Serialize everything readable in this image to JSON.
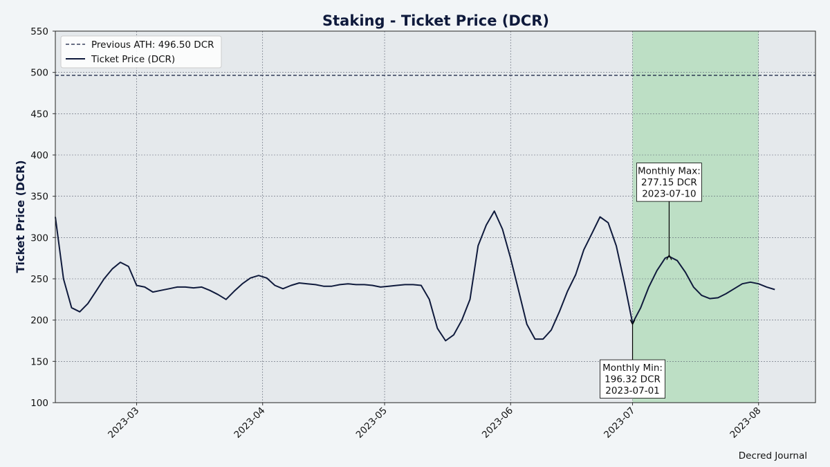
{
  "chart_data": {
    "type": "line",
    "title": "Staking - Ticket Price (DCR)",
    "y_label": "Ticket Price (DCR)",
    "source": "Decred Journal",
    "x": [
      "2023-02-09",
      "2023-02-11",
      "2023-02-13",
      "2023-02-15",
      "2023-02-17",
      "2023-02-19",
      "2023-02-21",
      "2023-02-23",
      "2023-02-25",
      "2023-02-27",
      "2023-03-01",
      "2023-03-03",
      "2023-03-05",
      "2023-03-07",
      "2023-03-09",
      "2023-03-11",
      "2023-03-13",
      "2023-03-15",
      "2023-03-17",
      "2023-03-19",
      "2023-03-21",
      "2023-03-23",
      "2023-03-25",
      "2023-03-27",
      "2023-03-29",
      "2023-03-31",
      "2023-04-02",
      "2023-04-04",
      "2023-04-06",
      "2023-04-08",
      "2023-04-10",
      "2023-04-12",
      "2023-04-14",
      "2023-04-16",
      "2023-04-18",
      "2023-04-20",
      "2023-04-22",
      "2023-04-24",
      "2023-04-26",
      "2023-04-28",
      "2023-04-30",
      "2023-05-02",
      "2023-05-04",
      "2023-05-06",
      "2023-05-08",
      "2023-05-10",
      "2023-05-12",
      "2023-05-14",
      "2023-05-16",
      "2023-05-18",
      "2023-05-20",
      "2023-05-22",
      "2023-05-24",
      "2023-05-26",
      "2023-05-28",
      "2023-05-30",
      "2023-06-01",
      "2023-06-03",
      "2023-06-05",
      "2023-06-07",
      "2023-06-09",
      "2023-06-11",
      "2023-06-13",
      "2023-06-15",
      "2023-06-17",
      "2023-06-19",
      "2023-06-21",
      "2023-06-23",
      "2023-06-25",
      "2023-06-27",
      "2023-06-29",
      "2023-07-01",
      "2023-07-03",
      "2023-07-05",
      "2023-07-07",
      "2023-07-09",
      "2023-07-10",
      "2023-07-12",
      "2023-07-14",
      "2023-07-16",
      "2023-07-18",
      "2023-07-20",
      "2023-07-22",
      "2023-07-24",
      "2023-07-26",
      "2023-07-28",
      "2023-07-30",
      "2023-08-01",
      "2023-08-03",
      "2023-08-05"
    ],
    "series": [
      {
        "name": "Ticket Price (DCR)",
        "color": "#0f1a3c",
        "values": [
          325,
          250,
          215,
          210,
          220,
          235,
          250,
          262,
          270,
          265,
          242,
          240,
          234,
          236,
          238,
          240,
          240,
          239,
          240,
          236,
          231,
          225,
          235,
          244,
          251,
          254,
          251,
          242,
          238,
          242,
          245,
          244,
          243,
          241,
          241,
          243,
          244,
          243,
          243,
          242,
          240,
          241,
          242,
          243,
          243,
          242,
          225,
          190,
          175,
          182,
          200,
          225,
          290,
          315,
          332,
          310,
          275,
          235,
          195,
          177,
          177,
          188,
          210,
          235,
          255,
          285,
          305,
          325,
          318,
          290,
          245,
          196.32,
          215,
          240,
          260,
          275,
          277.15,
          272,
          258,
          240,
          230,
          226,
          227,
          232,
          238,
          244,
          246,
          244,
          240,
          237
        ]
      }
    ],
    "reference_lines": [
      {
        "name": "Previous ATH: 496.50 DCR",
        "value": 496.5,
        "color": "#0f1a3c"
      }
    ],
    "highlight": {
      "from": "2023-07-01",
      "to": "2023-08-01",
      "color": "#bddfc5"
    },
    "annotations": [
      {
        "lines": [
          "Monthly Max:",
          "277.15 DCR",
          "2023-07-10"
        ],
        "x": "2023-07-10",
        "y": 277.15
      },
      {
        "lines": [
          "Monthly Min:",
          "196.32 DCR",
          "2023-07-01"
        ],
        "x": "2023-07-01",
        "y": 196.32
      }
    ],
    "xlim": [
      "2023-02-09",
      "2023-08-15"
    ],
    "xticks": [
      {
        "value": "2023-03-01",
        "label": "2023-03"
      },
      {
        "value": "2023-04-01",
        "label": "2023-04"
      },
      {
        "value": "2023-05-01",
        "label": "2023-05"
      },
      {
        "value": "2023-06-01",
        "label": "2023-06"
      },
      {
        "value": "2023-07-01",
        "label": "2023-07"
      },
      {
        "value": "2023-08-01",
        "label": "2023-08"
      }
    ],
    "ylim": [
      100,
      550
    ],
    "yticks": [
      100,
      150,
      200,
      250,
      300,
      350,
      400,
      450,
      500,
      550
    ],
    "grid": true,
    "legend": "upper left"
  }
}
